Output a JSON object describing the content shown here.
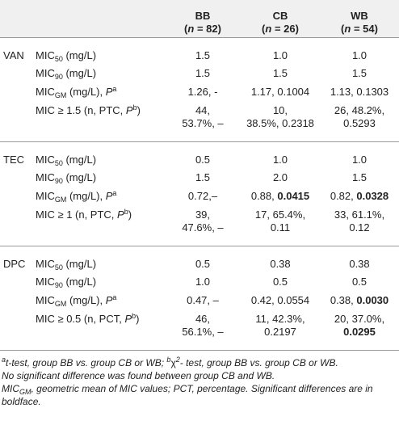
{
  "header": {
    "bb": {
      "label": "BB",
      "n_prefix": "(",
      "n_sym": "n",
      "n_value": " = 82)"
    },
    "cb": {
      "label": "CB",
      "n_prefix": "(",
      "n_sym": "n",
      "n_value": " = 26)"
    },
    "wb": {
      "label": "WB",
      "n_prefix": "(",
      "n_sym": "n",
      "n_value": " = 54)"
    }
  },
  "groups": {
    "van": {
      "name": "VAN",
      "r1": {
        "lab_pre": "MIC",
        "lab_sub": "50",
        "lab_post": " (mg/L)",
        "bb": "1.5",
        "cb": "1.0",
        "wb": "1.0"
      },
      "r2": {
        "lab_pre": "MIC",
        "lab_sub": "90",
        "lab_post": " (mg/L)",
        "bb": "1.5",
        "cb": "1.5",
        "wb": "1.5"
      },
      "r3": {
        "lab_pre": "MIC",
        "lab_sub": "GM",
        "lab_post": " (mg/L), ",
        "lab_p": "P",
        "lab_sup": "a",
        "bb": "1.26, -",
        "cb_plain": "1.17, 0.1004",
        "cb_bold": "",
        "wb_plain": "1.13, 0.1303",
        "wb_bold": ""
      },
      "r4": {
        "lab_pre": "MIC ≥ 1.5 (n, PTC, ",
        "lab_p": "P",
        "lab_sup": "b",
        "lab_post": ")",
        "bb_1": "44,",
        "bb_2": "53.7%, –",
        "cb_1": "10,",
        "cb_2": "38.5%, 0.2318",
        "wb_1": "26, 48.2%,",
        "wb_2": "0.5293",
        "wb_2_bold": ""
      }
    },
    "tec": {
      "name": "TEC",
      "r1": {
        "lab_pre": "MIC",
        "lab_sub": "50",
        "lab_post": " (mg/L)",
        "bb": "0.5",
        "cb": "1.0",
        "wb": "1.0"
      },
      "r2": {
        "lab_pre": "MIC",
        "lab_sub": "90",
        "lab_post": " (mg/L)",
        "bb": "1.5",
        "cb": "2.0",
        "wb": "1.5"
      },
      "r3": {
        "lab_pre": "MIC",
        "lab_sub": "GM",
        "lab_post": " (mg/L), ",
        "lab_p": "P",
        "lab_sup": "a",
        "bb": "0.72,–",
        "cb_plain": "0.88, ",
        "cb_bold": "0.0415",
        "wb_plain": "0.82, ",
        "wb_bold": "0.0328"
      },
      "r4": {
        "lab_pre": "MIC ≥ 1 (n, PTC, ",
        "lab_p": "P",
        "lab_sup": "b",
        "lab_post": ")",
        "bb_1": "39,",
        "bb_2": "47.6%, –",
        "cb_1": "17, 65.4%,",
        "cb_2": "0.11",
        "wb_1": "33, 61.1%,",
        "wb_2": "0.12",
        "wb_2_bold": ""
      }
    },
    "dpc": {
      "name": "DPC",
      "r1": {
        "lab_pre": "MIC",
        "lab_sub": "50",
        "lab_post": " (mg/L)",
        "bb": "0.5",
        "cb": "0.38",
        "wb": "0.38"
      },
      "r2": {
        "lab_pre": "MIC",
        "lab_sub": "90",
        "lab_post": " (mg/L)",
        "bb": "1.0",
        "cb": "0.5",
        "wb": "0.5"
      },
      "r3": {
        "lab_pre": "MIC",
        "lab_sub": "GM",
        "lab_post": " (mg/L), ",
        "lab_p": "P",
        "lab_sup": "a",
        "bb": "0.47, –",
        "cb_plain": "0.42, 0.0554",
        "cb_bold": "",
        "wb_plain": "0.38, ",
        "wb_bold": "0.0030"
      },
      "r4": {
        "lab_pre": "MIC ≥ 0.5 (n, PCT, ",
        "lab_p": "P",
        "lab_sup": "b",
        "lab_post": ")",
        "bb_1": "46,",
        "bb_2": "56.1%, –",
        "cb_1": "11, 42.3%,",
        "cb_2": "0.2197",
        "wb_1": "20, 37.0%,",
        "wb_2": "",
        "wb_2_bold": "0.0295"
      }
    }
  },
  "footnotes": {
    "n1_sup_a": "a",
    "n1_text_a": "t-test, group BB vs. group CB or WB; ",
    "n1_sup_b": "b",
    "n1_chi": "χ",
    "n1_chi_sup": "2",
    "n1_text_b": "- test, group BB vs. group CB or WB.",
    "n2": "No significant difference was found between group CB and WB.",
    "n3_pre": "MIC",
    "n3_sub": "GM",
    "n3_post": ", geometric mean of MIC values; PCT, percentage. Significant differences are in boldface."
  }
}
